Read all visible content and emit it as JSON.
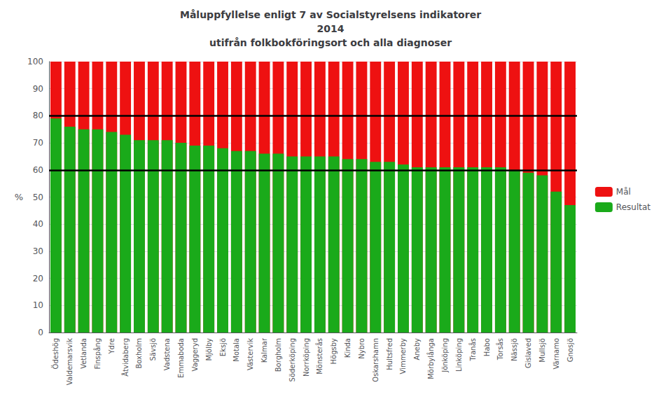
{
  "chart_data": {
    "type": "bar",
    "title": "Måluppfyllelse enligt 7 av Socialstyrelsens indikatorer\n2014\nutifrån folkbokföringsort och alla diagnoser",
    "ylabel": "%",
    "categories": [
      "Ödeshög",
      "Valdemarsvik",
      "Vetlanda",
      "Finspång",
      "Ydre",
      "Åtvidaberg",
      "Boxholm",
      "Sävsjö",
      "Vadstena",
      "Emmaboda",
      "Vaggeryd",
      "Mjölby",
      "Eksjö",
      "Motala",
      "Västervik",
      "Kalmar",
      "Borgholm",
      "Söderköping",
      "Norrköping",
      "Mönsterås",
      "Högsby",
      "Kinda",
      "Nybro",
      "Oskarshamn",
      "Hultsfred",
      "Vimmerby",
      "Aneby",
      "Mörbylånga",
      "Jönköping",
      "Linköping",
      "Tranås",
      "Habo",
      "Torsås",
      "Nässjö",
      "Gislaved",
      "Mullsjö",
      "Värnamo",
      "Gnosjö"
    ],
    "series": [
      {
        "name": "Mål",
        "color": "#ee1111",
        "values": [
          100,
          100,
          100,
          100,
          100,
          100,
          100,
          100,
          100,
          100,
          100,
          100,
          100,
          100,
          100,
          100,
          100,
          100,
          100,
          100,
          100,
          100,
          100,
          100,
          100,
          100,
          100,
          100,
          100,
          100,
          100,
          100,
          100,
          100,
          100,
          100,
          100,
          100
        ]
      },
      {
        "name": "Resultat",
        "color": "#1aaa1a",
        "values": [
          79,
          76,
          75,
          75,
          74,
          73,
          71,
          71,
          71,
          70,
          69,
          69,
          68,
          67,
          67,
          66,
          66,
          65,
          65,
          65,
          65,
          64,
          64,
          63,
          63,
          62,
          61,
          61,
          61,
          61,
          61,
          61,
          61,
          60,
          59,
          58,
          52,
          47
        ]
      }
    ],
    "hlines": [
      {
        "y": 80,
        "color": "#000000"
      },
      {
        "y": 60,
        "color": "#000000"
      }
    ],
    "ylim": [
      0,
      100
    ],
    "yticks": [
      0,
      10,
      20,
      30,
      40,
      50,
      60,
      70,
      80,
      90,
      100
    ],
    "grid": true,
    "legend": "right"
  }
}
